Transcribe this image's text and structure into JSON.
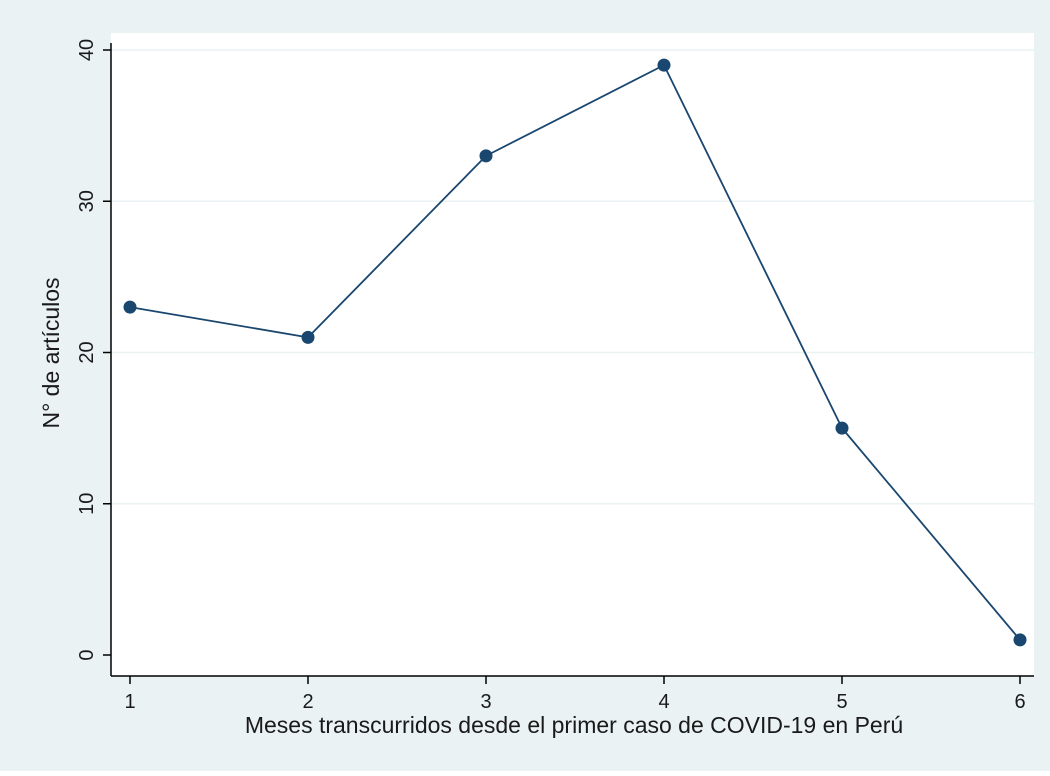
{
  "chart_data": {
    "type": "line",
    "title": "",
    "xlabel": "Meses transcurridos desde el primer caso de COVID-19 en Perú",
    "ylabel": "N° de artículos",
    "x": [
      1,
      2,
      3,
      4,
      5,
      6
    ],
    "series": [
      {
        "values": [
          23,
          21,
          33,
          39,
          15,
          1
        ]
      }
    ],
    "xlim": [
      1,
      6
    ],
    "ylim": [
      0,
      40
    ],
    "xticks": [
      "1",
      "2",
      "3",
      "4",
      "5",
      "6"
    ],
    "yticks": [
      "0",
      "10",
      "20",
      "30",
      "40"
    ],
    "grid": "horizontal",
    "legend": "none",
    "colors": {
      "outer_background": "#eaf2f3",
      "plot_background": "#ffffff",
      "gridline": "#eaf2f3",
      "line": "#1a476f",
      "marker": "#1a476f",
      "axis": "#000000"
    }
  }
}
